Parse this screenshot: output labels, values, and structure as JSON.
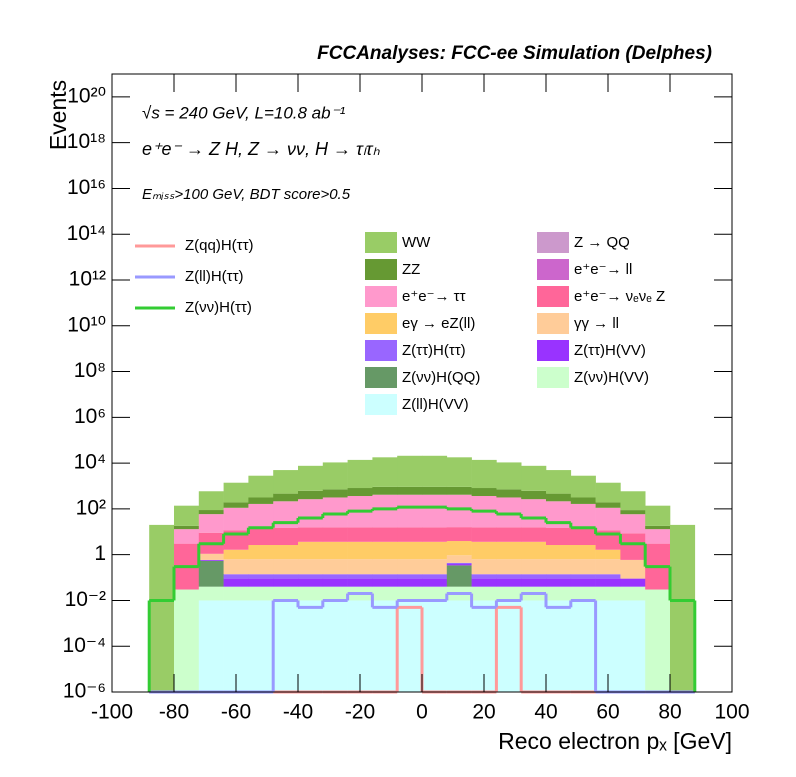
{
  "chart_data": {
    "type": "stacked-histogram",
    "title": "FCCAnalyses: FCC-ee Simulation (Delphes)",
    "annotations": [
      "√s = 240 GeV, L=10.8 ab⁻¹",
      "e⁺e⁻ → Z H, Z → νν, H → τₗτₕ",
      "Eₘᵢₛₛ>100 GeV, BDT score>0.5"
    ],
    "x_label": "Reco electron pₓ [GeV]",
    "y_label": "Events",
    "log_y": true,
    "xlim": [
      -100,
      100
    ],
    "xticks": [
      -100,
      -80,
      -60,
      -40,
      -20,
      0,
      20,
      40,
      60,
      80,
      100
    ],
    "ylim": [
      1e-06,
      1e+21
    ],
    "yticks": [
      {
        "value": 1e-06,
        "label": "10⁻⁶"
      },
      {
        "value": 0.0001,
        "label": "10⁻⁴"
      },
      {
        "value": 0.01,
        "label": "10⁻²"
      },
      1,
      {
        "value": 100,
        "label": "10²"
      },
      {
        "value": 10000.0,
        "label": "10⁴"
      },
      {
        "value": 1000000.0,
        "label": "10⁶"
      },
      {
        "value": 100000000.0,
        "label": "10⁸"
      },
      {
        "value": 10000000000.0,
        "label": "10¹⁰"
      },
      {
        "value": 1000000000000.0,
        "label": "10¹²"
      },
      {
        "value": 100000000000000.0,
        "label": "10¹⁴"
      },
      {
        "value": 1e+16,
        "label": "10¹⁶"
      },
      {
        "value": 1e+18,
        "label": "10¹⁸"
      },
      {
        "value": 1e+20,
        "label": "10²⁰"
      }
    ],
    "bins": [
      -88,
      -80,
      -72,
      -64,
      -56,
      -48,
      -40,
      -32,
      -24,
      -16,
      -8,
      0,
      8,
      16,
      24,
      32,
      40,
      48,
      56,
      64,
      72,
      80,
      88
    ],
    "series": [
      {
        "name": "WW",
        "color": "#99cc66",
        "values": [
          20,
          120,
          500,
          1200,
          2500,
          4500,
          7000,
          10000,
          13000,
          17000,
          20000,
          20000,
          17000,
          13000,
          10000,
          7000,
          4500,
          2500,
          1200,
          500,
          120,
          20
        ]
      },
      {
        "name": "Z → QQ",
        "color": "#cc99cc",
        "values": [
          0,
          0,
          0,
          0,
          0,
          0,
          0,
          0,
          0,
          0,
          0,
          0,
          0,
          0,
          0,
          0,
          0,
          0,
          0,
          0,
          0,
          0
        ]
      },
      {
        "name": "ZZ",
        "color": "#669933",
        "values": [
          0,
          5,
          30,
          80,
          150,
          250,
          350,
          400,
          450,
          500,
          500,
          500,
          500,
          450,
          400,
          350,
          250,
          150,
          80,
          30,
          5,
          0
        ]
      },
      {
        "name": "e⁺e⁻→ ll",
        "color": "#cc66cc",
        "values": [
          0,
          0,
          0,
          0,
          0,
          0,
          0,
          0,
          0,
          0,
          0,
          0,
          0,
          0,
          0,
          0,
          0,
          0,
          0,
          0,
          0,
          0
        ]
      },
      {
        "name": "e⁺e⁻→ ττ",
        "color": "#ff99cc",
        "values": [
          0,
          10,
          50,
          100,
          150,
          200,
          250,
          300,
          350,
          400,
          400,
          400,
          400,
          350,
          300,
          250,
          200,
          150,
          100,
          50,
          10,
          0
        ]
      },
      {
        "name": "e⁺e⁻→ νₑνₑ Z",
        "color": "#ff6699",
        "values": [
          0,
          3,
          8,
          10,
          12,
          12,
          12,
          12,
          12,
          12,
          12,
          12,
          12,
          12,
          12,
          12,
          12,
          12,
          10,
          8,
          3,
          0
        ]
      },
      {
        "name": "eγ → eZ(ll)",
        "color": "#ffcc66",
        "values": [
          0,
          0,
          0,
          1,
          2,
          2,
          3,
          3,
          3,
          3,
          3,
          3,
          3,
          3,
          3,
          3,
          2,
          2,
          1,
          0,
          0,
          0
        ]
      },
      {
        "name": "γγ → ll",
        "color": "#ffcc99",
        "values": [
          0,
          0,
          0.5,
          0.5,
          0.5,
          0.5,
          0.5,
          0.5,
          0.5,
          0.5,
          0.5,
          0.5,
          0.5,
          0.5,
          0.5,
          0.5,
          0.5,
          0.5,
          0.5,
          0.5,
          0,
          0
        ]
      },
      {
        "name": "Z(ττ)H(ττ)",
        "color": "#9966ff",
        "values": [
          0,
          0,
          0,
          0.05,
          0.05,
          0.05,
          0.05,
          0.05,
          0.05,
          0.05,
          0.05,
          0.05,
          0.05,
          0.05,
          0.05,
          0.05,
          0.05,
          0.05,
          0.05,
          0,
          0,
          0
        ]
      },
      {
        "name": "Z(ττ)H(VV)",
        "color": "#9933ff",
        "values": [
          0,
          0,
          0.05,
          0.05,
          0.05,
          0.05,
          0.05,
          0.05,
          0.05,
          0.05,
          0.05,
          0.05,
          0.05,
          0.05,
          0.05,
          0.05,
          0.05,
          0.05,
          0.05,
          0.05,
          0,
          0
        ]
      },
      {
        "name": "Z(νν)H(QQ)",
        "color": "#669966",
        "values": [
          0,
          0,
          0.5,
          0,
          0,
          0,
          0,
          0,
          0,
          0,
          0,
          0,
          0.3,
          0,
          0,
          0,
          0,
          0,
          0,
          0,
          0,
          0
        ]
      },
      {
        "name": "Z(νν)H(VV)",
        "color": "#ccffcc",
        "values": [
          0,
          0.03,
          0.03,
          0.03,
          0.03,
          0.03,
          0.03,
          0.03,
          0.03,
          0.03,
          0.03,
          0.03,
          0.03,
          0.03,
          0.03,
          0.03,
          0.03,
          0.03,
          0.03,
          0.03,
          0.03,
          0
        ]
      },
      {
        "name": "Z(ll)H(VV)",
        "color": "#ccffff",
        "values": [
          0,
          0,
          0.01,
          0.01,
          0.01,
          0.01,
          0.01,
          0.01,
          0.01,
          0.01,
          0.01,
          0.01,
          0.01,
          0.01,
          0.01,
          0.01,
          0.01,
          0.01,
          0.01,
          0.01,
          0,
          0
        ]
      }
    ],
    "line_series": [
      {
        "name": "Z(qq)H(ττ)",
        "color": "#ff9999",
        "values": [
          0,
          0,
          0,
          0,
          0,
          0,
          0,
          0,
          0,
          0,
          0.005,
          0,
          0,
          0,
          0.005,
          0,
          0,
          0,
          0,
          0,
          0,
          0
        ]
      },
      {
        "name": "Z(ll)H(ττ)",
        "color": "#9999ff",
        "values": [
          0,
          0,
          0,
          0,
          0,
          0.01,
          0.005,
          0.01,
          0.02,
          0.005,
          0.01,
          0.01,
          0.02,
          0.005,
          0.01,
          0.02,
          0.005,
          0.01,
          0,
          0,
          0,
          0
        ]
      },
      {
        "name": "Z(νν)H(ττ)",
        "color": "#33cc33",
        "values": [
          0.01,
          0.3,
          3,
          8,
          15,
          25,
          40,
          60,
          80,
          100,
          120,
          120,
          100,
          80,
          60,
          40,
          25,
          15,
          8,
          3,
          0.3,
          0.01
        ]
      }
    ]
  }
}
